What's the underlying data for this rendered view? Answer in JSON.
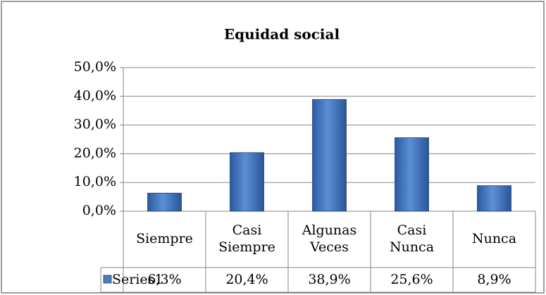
{
  "chart_data": {
    "type": "bar",
    "title": "Equidad social",
    "categories": [
      "Siempre",
      "Casi Siempre",
      "Algunas Veces",
      "Casi Nunca",
      "Nunca"
    ],
    "series": [
      {
        "name": "Series1",
        "color": "#4a7ebb",
        "values": [
          6.3,
          20.4,
          38.9,
          25.6,
          8.9
        ],
        "value_labels": [
          "6,3%",
          "20,4%",
          "38,9%",
          "25,6%",
          "8,9%"
        ]
      }
    ],
    "ylim": [
      0,
      50
    ],
    "yticks": [
      {
        "value": 0,
        "label": "0,0%"
      },
      {
        "value": 10,
        "label": "10,0%"
      },
      {
        "value": 20,
        "label": "20,0%"
      },
      {
        "value": 30,
        "label": "30,0%"
      },
      {
        "value": 40,
        "label": "40,0%"
      },
      {
        "value": 50,
        "label": "50,0%"
      }
    ],
    "grid": true,
    "data_table": true
  }
}
